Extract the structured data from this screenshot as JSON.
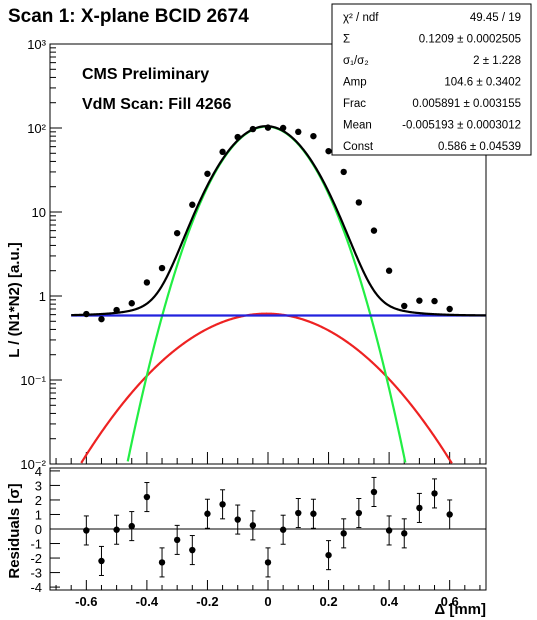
{
  "title": "Scan 1: X-plane BCID 2674",
  "annotations": [
    "CMS Preliminary",
    "VdM Scan: Fill 4266"
  ],
  "stats": [
    {
      "label": "χ² / ndf",
      "value": "49.45 / 19"
    },
    {
      "label": "Σ",
      "value": "0.1209 ± 0.0002505"
    },
    {
      "label": "σ₁/σ₂",
      "value": "2 ± 1.228"
    },
    {
      "label": "Amp",
      "value": "104.6 ± 0.3402"
    },
    {
      "label": "Frac",
      "value": "0.005891 ± 0.003155"
    },
    {
      "label": "Mean",
      "value": "-0.005193 ± 0.0003012"
    },
    {
      "label": "Const",
      "value": "0.586 ± 0.04539"
    }
  ],
  "colors": {
    "total_fit": "#000000",
    "narrow_gaussian": "#22ee44",
    "wide_gaussian": "#ee2222",
    "constant": "#2222dd",
    "points": "#000000"
  },
  "chart_data": [
    {
      "type": "scatter",
      "ylabel": "L / (N1*N2) [a.u.]",
      "yscale": "log",
      "ylim": [
        0.01,
        1000
      ],
      "xlim": [
        -0.72,
        0.72
      ],
      "ytick_labels": [
        "10⁻²",
        "10⁻¹",
        "1",
        "10",
        "10²",
        "10³"
      ],
      "ytick_values": [
        0.01,
        0.1,
        1,
        10,
        100,
        1000
      ],
      "points": {
        "x": [
          -0.6,
          -0.55,
          -0.5,
          -0.45,
          -0.4,
          -0.35,
          -0.3,
          -0.25,
          -0.2,
          -0.15,
          -0.1,
          -0.05,
          0,
          0.05,
          0.1,
          0.15,
          0.2,
          0.25,
          0.3,
          0.35,
          0.4,
          0.45,
          0.5,
          0.55,
          0.6
        ],
        "y": [
          0.61,
          0.53,
          0.68,
          0.82,
          1.45,
          2.15,
          5.6,
          12.2,
          28.5,
          52,
          78,
          97,
          101,
          100,
          90,
          80,
          53,
          30,
          13,
          6,
          2,
          0.76,
          0.88,
          0.87,
          0.7
        ]
      },
      "fit": {
        "amp": 104.6,
        "mean": -0.005193,
        "sigma_narrow": 0.1069,
        "frac_wide": 0.005891,
        "sigma_wide": 0.2138,
        "const": 0.586
      },
      "series": [
        {
          "name": "",
          "role": "total fit",
          "color": "#000000"
        },
        {
          "name": "",
          "role": "narrow gaussian",
          "color": "#22ee44"
        },
        {
          "name": "",
          "role": "wide gaussian",
          "color": "#ee2222"
        },
        {
          "name": "",
          "role": "constant",
          "color": "#2222dd"
        }
      ]
    },
    {
      "type": "scatter",
      "ylabel": "Residuals [σ]",
      "xlabel": "Δ [mm]",
      "ylim": [
        -4.2,
        4.2
      ],
      "xlim": [
        -0.72,
        0.72
      ],
      "xtick_labels": [
        "-0.6",
        "-0.4",
        "-0.2",
        "0",
        "0.2",
        "0.4",
        "0.6"
      ],
      "xtick_values": [
        -0.6,
        -0.4,
        -0.2,
        0,
        0.2,
        0.4,
        0.6
      ],
      "ytick_labels": [
        "4",
        "3",
        "2",
        "1",
        "0",
        "-1",
        "-2",
        "-3",
        "-4"
      ],
      "ytick_values": [
        4,
        3,
        2,
        1,
        0,
        -1,
        -2,
        -3,
        -4
      ],
      "points": {
        "x": [
          -0.6,
          -0.55,
          -0.5,
          -0.45,
          -0.4,
          -0.35,
          -0.3,
          -0.25,
          -0.2,
          -0.15,
          -0.1,
          -0.05,
          0,
          0.05,
          0.1,
          0.15,
          0.2,
          0.25,
          0.3,
          0.35,
          0.4,
          0.45,
          0.5,
          0.55,
          0.6
        ],
        "y": [
          -0.1,
          -2.2,
          -0.05,
          0.2,
          2.2,
          -2.3,
          -0.75,
          -1.45,
          1.05,
          1.7,
          0.65,
          0.25,
          -2.3,
          -0.05,
          1.1,
          1.05,
          -1.8,
          -0.3,
          1.1,
          2.55,
          -0.1,
          -0.3,
          1.45,
          2.45,
          1.0
        ],
        "err": 1.0
      }
    }
  ]
}
